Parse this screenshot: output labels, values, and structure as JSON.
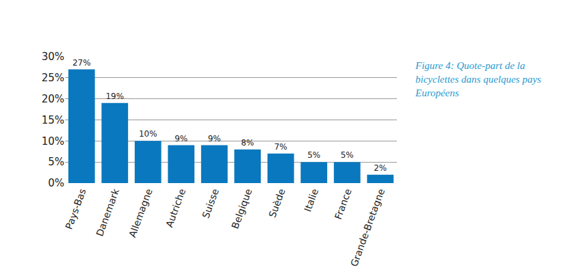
{
  "chart_data": {
    "type": "bar",
    "title": "Figure 4: Quote-part de la bicyclettes dans quelques pays Européens",
    "categories": [
      "Pays-Bas",
      "Danemark",
      "Allemagne",
      "Autriche",
      "Suisse",
      "Belgique",
      "Suède",
      "Italie",
      "France",
      "Grande-Bretagne"
    ],
    "values": [
      27,
      19,
      10,
      9,
      9,
      8,
      7,
      5,
      5,
      2
    ],
    "value_labels": [
      "27%",
      "19%",
      "10%",
      "9%",
      "9%",
      "8%",
      "7%",
      "5%",
      "5%",
      "2%"
    ],
    "color": "#0a78be",
    "ylim": [
      0,
      30
    ],
    "yticks": [
      {
        "value": 0,
        "label": "0%"
      },
      {
        "value": 5,
        "label": "5%"
      },
      {
        "value": 10,
        "label": "10%"
      },
      {
        "value": 15,
        "label": "15%"
      },
      {
        "value": 20,
        "label": "20%"
      },
      {
        "value": 25,
        "label": "25%"
      },
      {
        "value": 30,
        "label": "30%"
      }
    ],
    "grid": true,
    "data_labels": true
  }
}
